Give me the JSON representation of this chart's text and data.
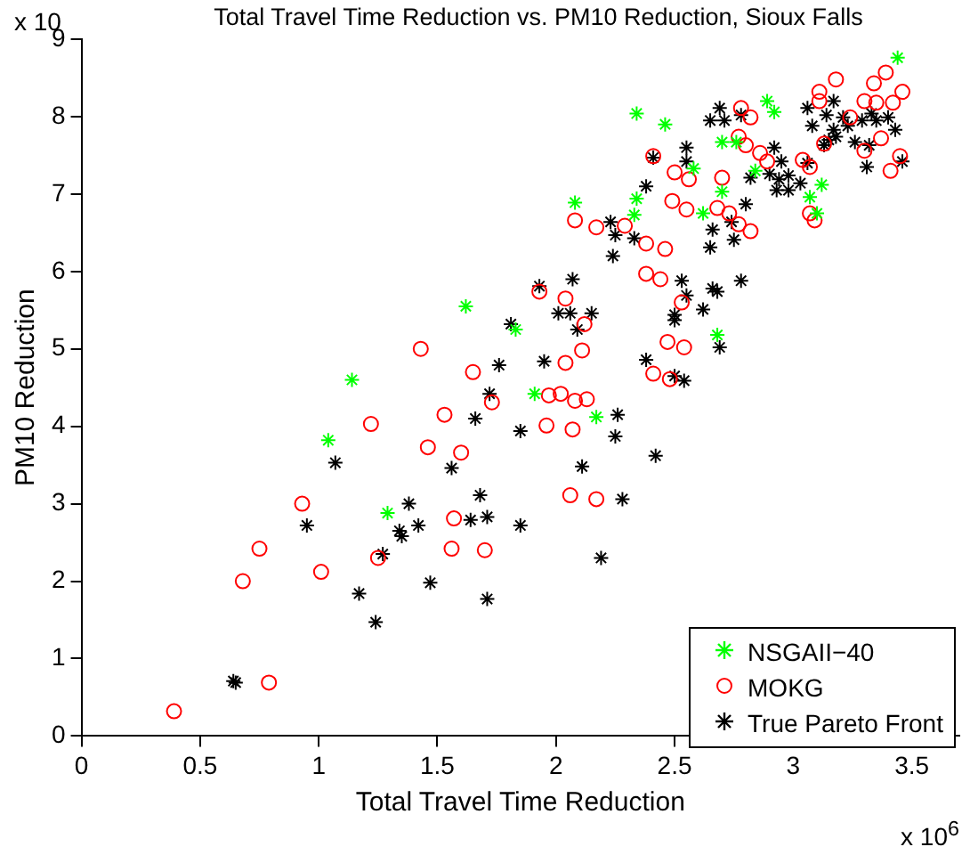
{
  "chart_data": {
    "type": "scatter",
    "title": "Total Travel Time Reduction vs. PM10 Reduction, Sioux Falls",
    "xlabel": "Total Travel Time Reduction",
    "ylabel": "PM10 Reduction",
    "annotations": [
      "x 10",
      "x 10$^{6}$"
    ],
    "xlim": [
      0,
      3.7
    ],
    "xticks": [
      0,
      0.5,
      1,
      1.5,
      2,
      2.5,
      3,
      3.5
    ],
    "ylim": [
      0,
      9
    ],
    "yticks": [
      0,
      1,
      2,
      3,
      4,
      5,
      6,
      7,
      8,
      9
    ],
    "grid": false,
    "legend": "bottom right",
    "marker": "cross",
    "series": [
      {
        "name": "NSGAII−40",
        "color": "#00ff00",
        "x": [
          1.04,
          1.14,
          1.29,
          1.62,
          1.83,
          1.91,
          2.17,
          2.68,
          3.44,
          2.34,
          2.46,
          2.89,
          2.92,
          2.7,
          2.76,
          2.58,
          2.84,
          2.7,
          3.12,
          3.07,
          3.1,
          2.08,
          2.34,
          2.33,
          2.62
        ],
        "values": [
          3.82,
          4.6,
          2.88,
          5.55,
          5.25,
          4.42,
          4.12,
          5.18,
          8.76,
          8.04,
          7.9,
          8.2,
          8.06,
          7.67,
          7.67,
          7.33,
          7.3,
          7.03,
          7.12,
          6.96,
          6.75,
          6.89,
          6.94,
          6.73,
          6.75
        ]
      },
      {
        "name": "MOKG",
        "color": "#ff0000",
        "marker": "circle",
        "x": [
          0.39,
          0.68,
          0.75,
          0.79,
          0.93,
          1.01,
          1.22,
          1.25,
          1.43,
          1.46,
          1.53,
          1.56,
          1.57,
          1.6,
          1.65,
          1.7,
          1.73,
          2.12,
          2.04,
          2.11,
          1.97,
          2.02,
          2.08,
          2.13,
          1.96,
          2.07,
          2.06,
          2.17,
          2.47,
          2.54,
          2.41,
          2.48,
          3.18,
          3.34,
          3.39,
          3.46,
          3.11,
          3.11,
          3.3,
          3.35,
          3.42,
          2.78,
          2.82,
          3.24,
          3.37,
          2.77,
          2.8,
          2.86,
          2.89,
          3.13,
          3.3,
          3.04,
          3.07,
          3.45,
          3.41,
          2.41,
          2.5,
          2.56,
          2.7,
          2.49,
          2.55,
          2.68,
          2.73,
          2.77,
          2.82,
          3.07,
          3.09,
          2.08,
          2.17,
          2.29,
          2.38,
          2.46,
          2.38,
          2.44,
          2.53,
          2.04,
          1.93
        ],
        "values": [
          0.32,
          2.0,
          2.42,
          0.69,
          3.0,
          2.12,
          4.03,
          2.3,
          5.0,
          3.73,
          4.15,
          2.42,
          2.81,
          3.66,
          4.7,
          2.4,
          4.31,
          5.32,
          4.82,
          4.98,
          4.4,
          4.42,
          4.33,
          4.35,
          4.01,
          3.96,
          3.11,
          3.06,
          5.09,
          5.02,
          4.68,
          4.61,
          8.48,
          8.43,
          8.57,
          8.32,
          8.32,
          8.2,
          8.2,
          8.18,
          8.18,
          8.11,
          7.99,
          7.99,
          7.72,
          7.74,
          7.63,
          7.53,
          7.42,
          7.65,
          7.56,
          7.44,
          7.35,
          7.49,
          7.3,
          7.49,
          7.28,
          7.19,
          7.21,
          6.91,
          6.8,
          6.82,
          6.75,
          6.61,
          6.52,
          6.75,
          6.66,
          6.66,
          6.57,
          6.59,
          6.36,
          6.29,
          5.97,
          5.9,
          5.6,
          5.65,
          5.74
        ]
      },
      {
        "name": "True Pareto Front",
        "color": "#000000",
        "x": [
          0.64,
          0.65,
          0.95,
          1.07,
          1.17,
          1.24,
          1.27,
          1.34,
          1.35,
          1.38,
          1.42,
          1.47,
          1.56,
          1.64,
          1.66,
          1.68,
          1.71,
          1.71,
          1.72,
          1.76,
          1.81,
          2.09,
          1.95,
          1.85,
          1.85,
          2.11,
          2.26,
          2.25,
          2.42,
          2.28,
          2.19,
          2.38,
          2.5,
          2.54,
          2.69,
          2.5,
          3.17,
          3.06,
          3.08,
          3.14,
          3.21,
          3.17,
          3.18,
          3.15,
          3.23,
          3.29,
          3.33,
          3.35,
          3.4,
          3.43,
          3.26,
          3.32,
          3.31,
          3.46,
          3.13,
          3.06,
          2.69,
          2.65,
          2.71,
          2.78,
          2.55,
          2.41,
          2.55,
          2.92,
          2.95,
          2.82,
          2.9,
          2.98,
          2.94,
          3.03,
          2.93,
          2.98,
          2.38,
          2.8,
          2.23,
          2.25,
          2.33,
          2.24,
          2.66,
          2.74,
          2.75,
          2.65,
          2.07,
          1.93,
          2.78,
          2.53,
          2.55,
          2.66,
          2.68,
          2.01,
          2.06,
          2.15,
          2.5,
          2.62
        ],
        "values": [
          0.71,
          0.69,
          2.72,
          3.53,
          1.84,
          1.47,
          2.35,
          2.65,
          2.58,
          3.0,
          2.72,
          1.98,
          3.46,
          2.79,
          4.1,
          3.11,
          2.83,
          1.77,
          4.42,
          4.79,
          5.32,
          5.25,
          4.84,
          3.94,
          2.72,
          3.48,
          4.15,
          3.87,
          3.62,
          3.06,
          2.3,
          4.86,
          4.65,
          4.59,
          5.02,
          5.37,
          8.2,
          8.11,
          7.88,
          8.02,
          7.99,
          7.83,
          7.74,
          7.7,
          7.88,
          7.95,
          8.04,
          7.95,
          7.99,
          7.83,
          7.67,
          7.63,
          7.35,
          7.42,
          7.63,
          7.4,
          8.11,
          7.95,
          7.95,
          8.02,
          7.6,
          7.47,
          7.42,
          7.6,
          7.42,
          7.21,
          7.26,
          7.24,
          7.19,
          7.14,
          7.05,
          7.05,
          7.1,
          6.87,
          6.64,
          6.47,
          6.43,
          6.2,
          6.54,
          6.64,
          6.41,
          6.31,
          5.9,
          5.81,
          5.88,
          5.88,
          5.69,
          5.78,
          5.74,
          5.46,
          5.46,
          5.46,
          5.44,
          5.51
        ]
      }
    ]
  }
}
